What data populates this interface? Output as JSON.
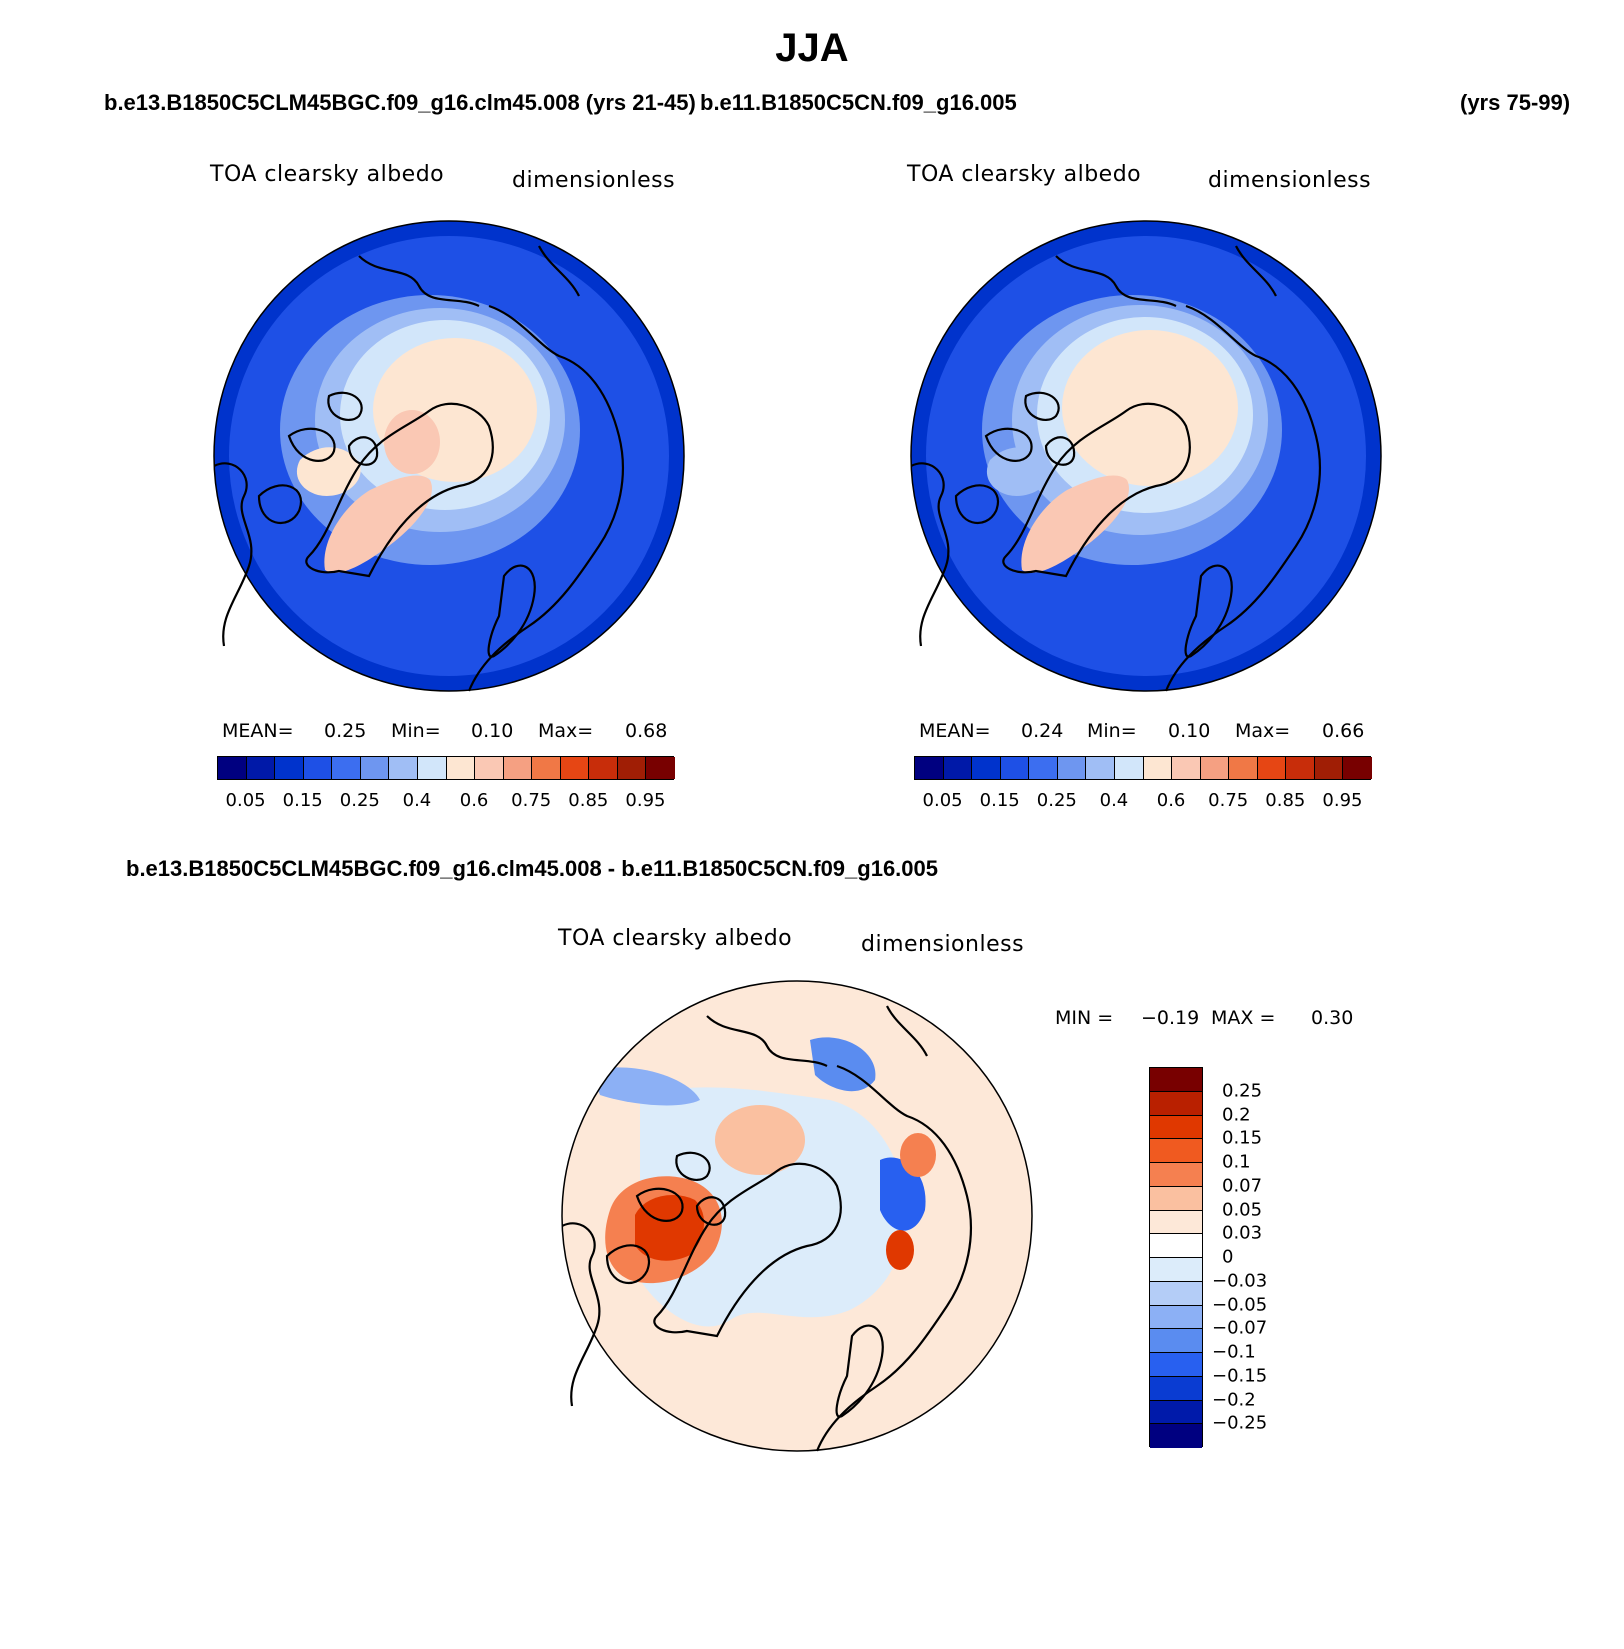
{
  "title": "JJA",
  "panel1": {
    "case": "b.e13.B1850C5CLM45BGC.f09_g16.clm45.008 (yrs 21-45)",
    "case_display": "b.e13.B1850C5CLM45BGC.f09_g16.clm45.008 (yrs 21-45)",
    "variable": "TOA clearsky albedo",
    "units": "dimensionless",
    "mean_label": "MEAN=",
    "mean": "0.25",
    "min_label": "Min=",
    "min": "0.10",
    "max_label": "Max=",
    "max": "0.68"
  },
  "panel2": {
    "case": "b.e11.B1850C5CN.f09_g16.005",
    "years": "(yrs 75-99)",
    "variable": "TOA clearsky albedo",
    "units": "dimensionless",
    "mean_label": "MEAN=",
    "mean": "0.24",
    "min_label": "Min=",
    "min": "0.10",
    "max_label": "Max=",
    "max": "0.66"
  },
  "panel3": {
    "case": "b.e13.B1850C5CLM45BGC.f09_g16.clm45.008 - b.e11.B1850C5CN.f09_g16.005",
    "variable": "TOA clearsky albedo",
    "units": "dimensionless",
    "min_label": "MIN =",
    "min": "−0.19",
    "max_label": "MAX =",
    "max": "0.30"
  },
  "colorbar_abs": {
    "colors": [
      "#000080",
      "#0019a8",
      "#0033cc",
      "#1e50e6",
      "#3c6ef0",
      "#6e96f0",
      "#a0bef5",
      "#d2e6fa",
      "#fde6d2",
      "#fac8b4",
      "#f5a082",
      "#f07846",
      "#e64614",
      "#c82d0a",
      "#a01e05",
      "#780000"
    ],
    "labels": [
      "0.05",
      "0.15",
      "0.25",
      "0.4",
      "0.6",
      "0.75",
      "0.85",
      "0.95"
    ]
  },
  "colorbar_diff": {
    "colors": [
      "#780000",
      "#b92000",
      "#e03800",
      "#f05a20",
      "#f58050",
      "#fac0a0",
      "#fde8d8",
      "#dcecfa",
      "#b4cdf7",
      "#8cb0f5",
      "#5a8cf0",
      "#2860f0",
      "#0a3cd2",
      "#001aaa",
      "#000080"
    ],
    "labels": [
      "0.25",
      "0.2",
      "0.15",
      "0.1",
      "0.07",
      "0.05",
      "0.03",
      "0",
      "−0.03",
      "−0.05",
      "−0.07",
      "−0.1",
      "−0.15",
      "−0.2",
      "−0.25"
    ]
  }
}
